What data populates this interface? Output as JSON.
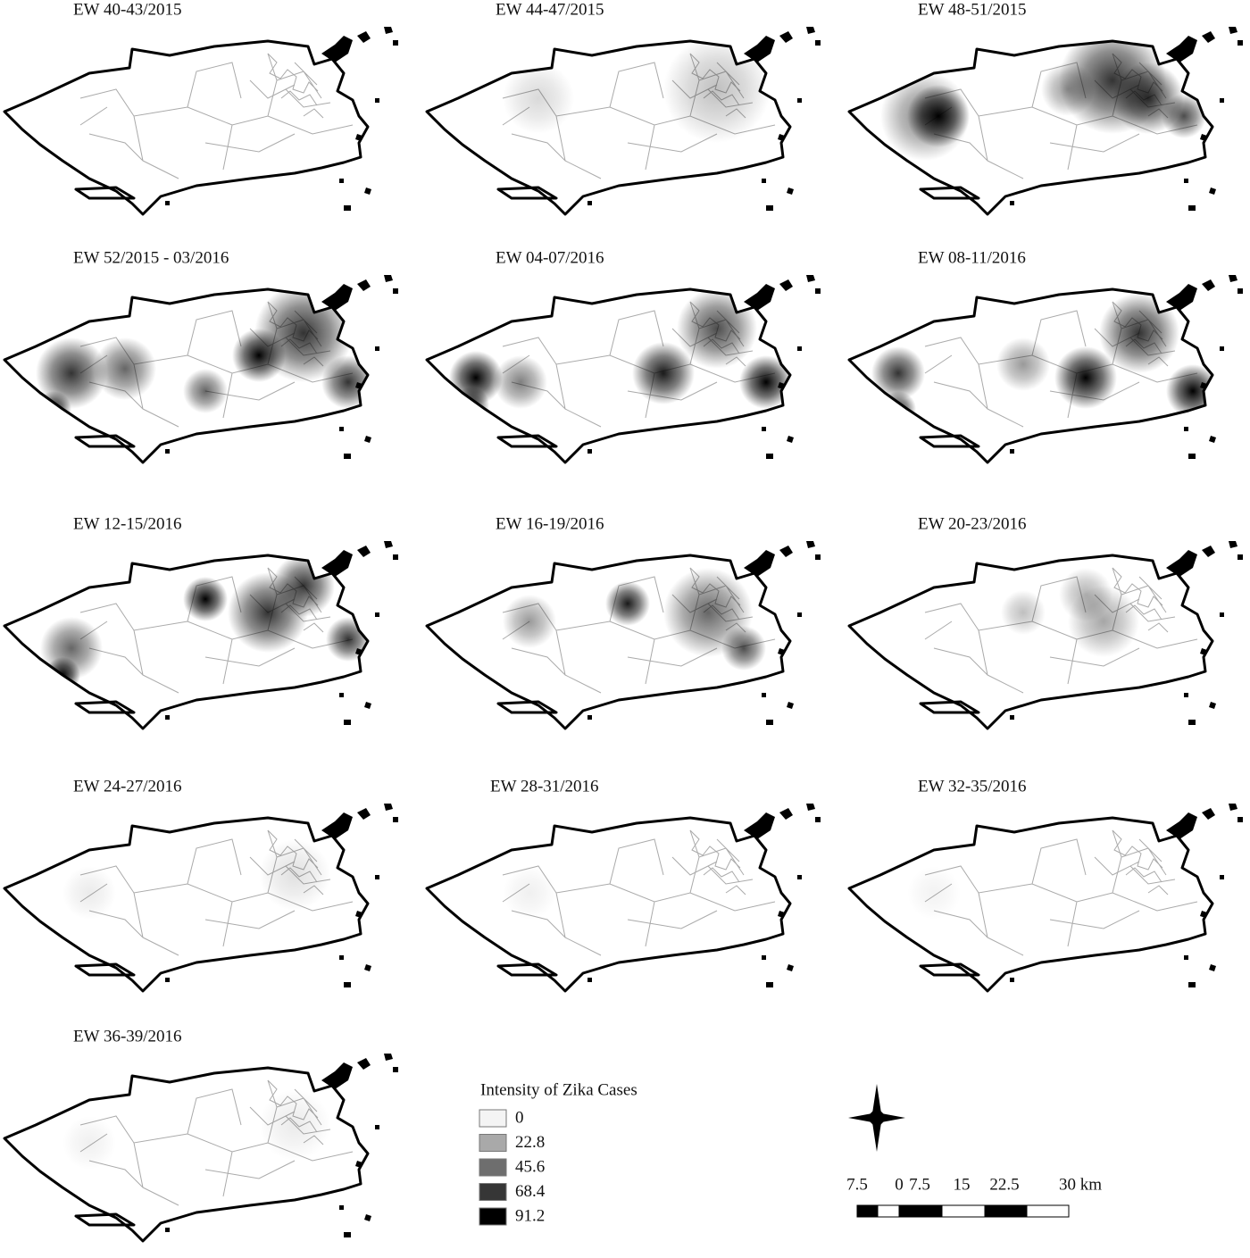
{
  "panels": [
    {
      "title": "EW 40-43/2015"
    },
    {
      "title": "EW 44-47/2015"
    },
    {
      "title": "EW 48-51/2015"
    },
    {
      "title": "EW 52/2015 - 03/2016"
    },
    {
      "title": "EW 04-07/2016"
    },
    {
      "title": "EW 08-11/2016"
    },
    {
      "title": "EW 12-15/2016"
    },
    {
      "title": "EW 16-19/2016"
    },
    {
      "title": "EW 20-23/2016"
    },
    {
      "title": "EW 24-27/2016"
    },
    {
      "title": "EW 28-31/2016"
    },
    {
      "title": "EW 32-35/2016"
    },
    {
      "title": "EW 36-39/2016"
    }
  ],
  "legend": {
    "title": "Intensity of Zika Cases",
    "entries": [
      {
        "label": "0",
        "color": "#f4f4f4"
      },
      {
        "label": "22.8",
        "color": "#a9a9a9"
      },
      {
        "label": "45.6",
        "color": "#6e6e6e"
      },
      {
        "label": "68.4",
        "color": "#363636"
      },
      {
        "label": "91.2",
        "color": "#000000"
      }
    ]
  },
  "scale_bar": {
    "labels": [
      "7.5",
      "0",
      "7.5",
      "15",
      "22.5",
      "30 km"
    ]
  }
}
